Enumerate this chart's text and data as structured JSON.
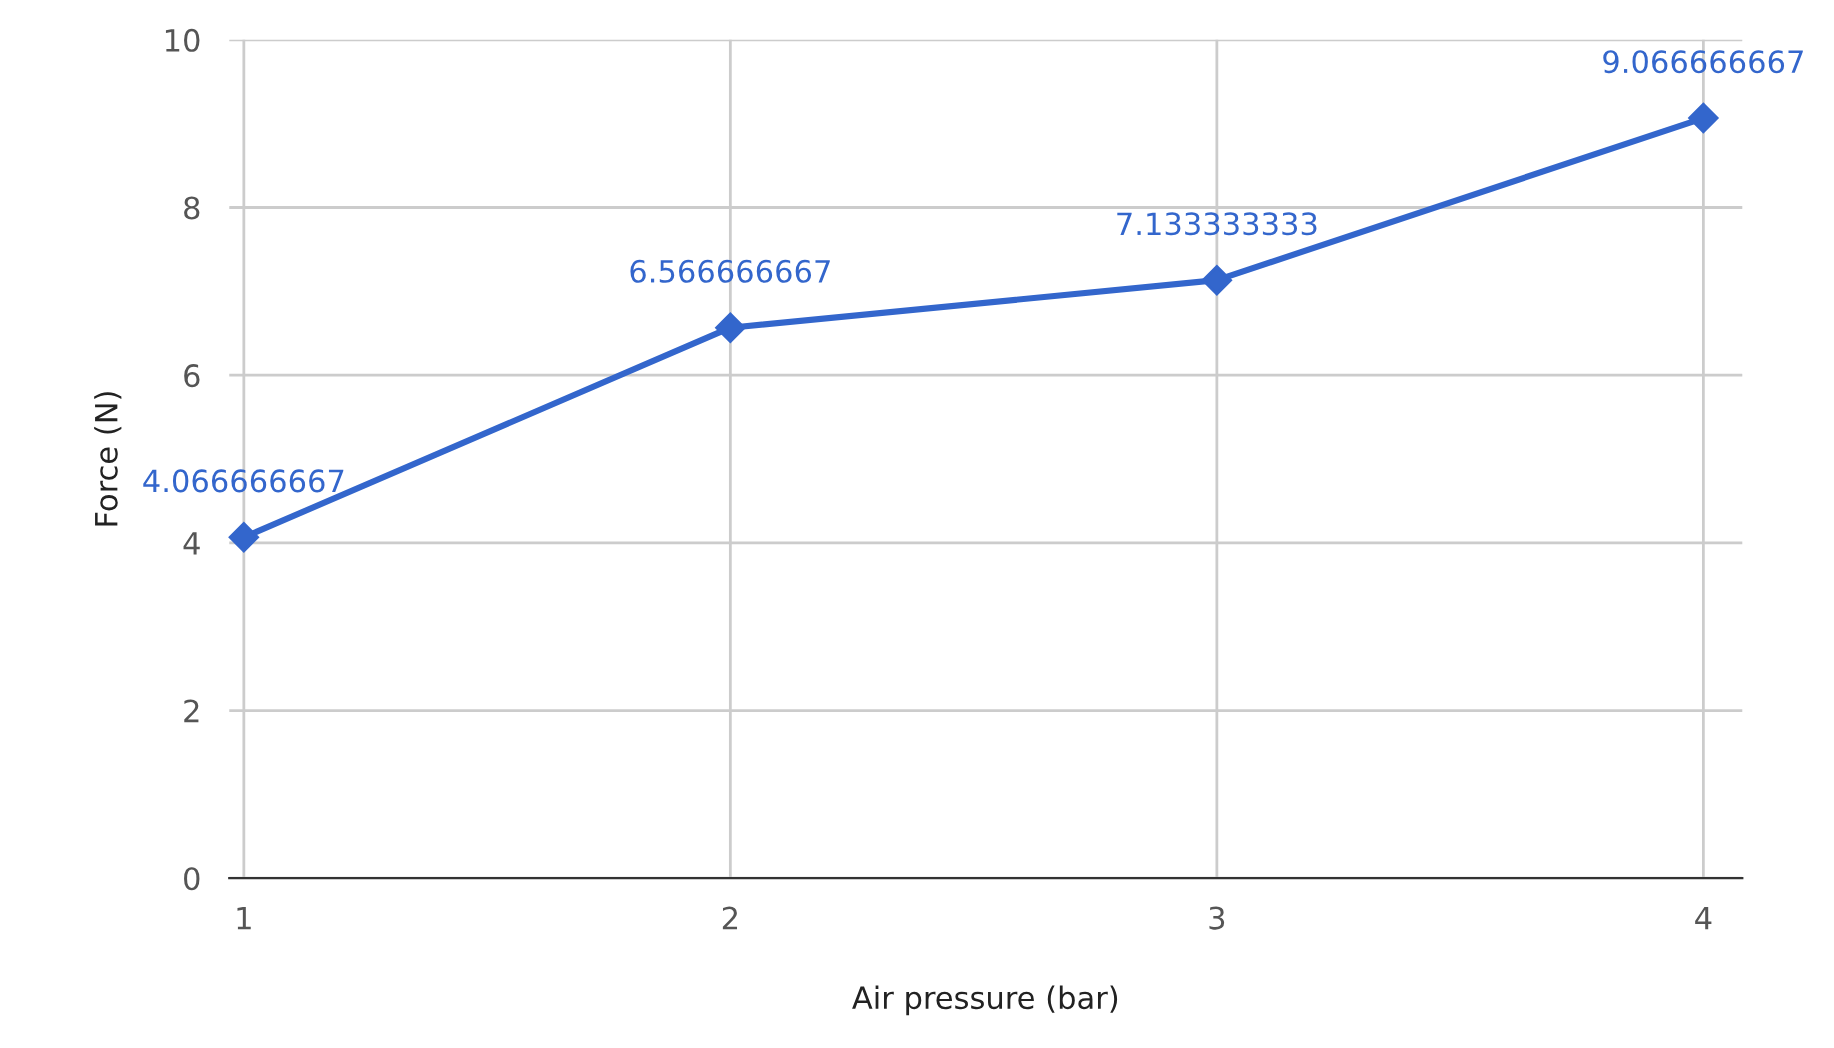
{
  "chart_data": {
    "type": "line",
    "xlabel": "Air pressure (bar)",
    "ylabel": "Force (N)",
    "x": [
      1,
      2,
      3,
      4
    ],
    "series": [
      {
        "color": "#3366cc",
        "values": [
          4.066666667,
          6.566666667,
          7.133333333,
          9.066666667
        ]
      }
    ],
    "xlim": [
      0.97,
      4.08
    ],
    "xticks": [
      1,
      2,
      3,
      4
    ],
    "ylim": [
      0,
      10
    ],
    "yticks": [
      0,
      2,
      4,
      6,
      8,
      10
    ],
    "grid": true,
    "marker": "diamond",
    "line_style": "solid",
    "data_labels": true
  }
}
